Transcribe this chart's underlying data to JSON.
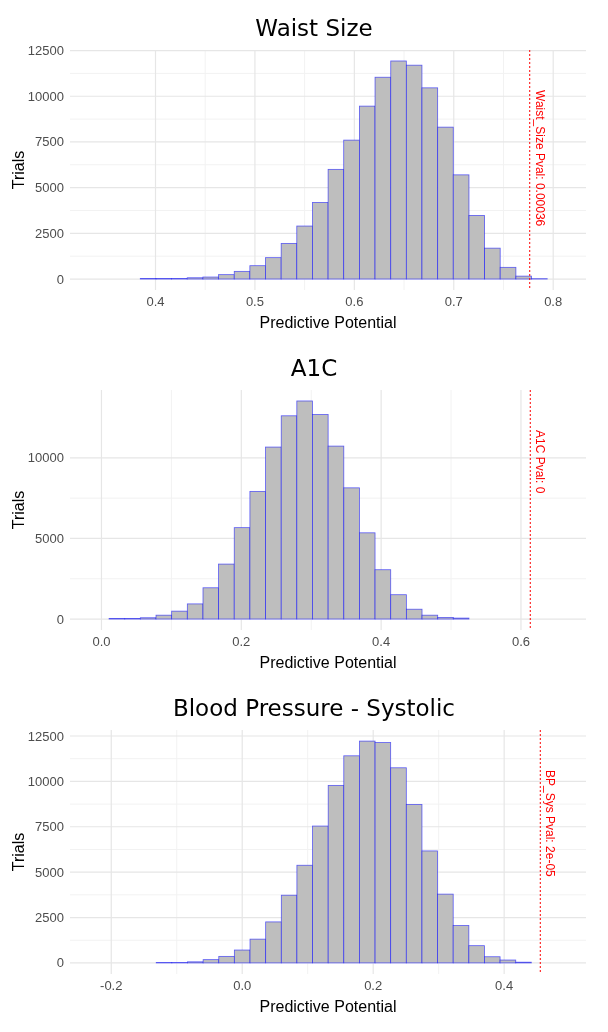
{
  "chart_data": [
    {
      "type": "histogram",
      "title": "Waist Size",
      "xlabel": "Predictive Potential",
      "ylabel": "Trials",
      "color": "#bebebe",
      "annotations": [
        "Waist_Size Pval: 0.00036"
      ],
      "bins": [
        0.3375,
        0.3532,
        0.369,
        0.3847,
        0.4005,
        0.4162,
        0.4319,
        0.4477,
        0.4634,
        0.4792,
        0.4949,
        0.5106,
        0.5264,
        0.5421,
        0.5579,
        0.5736,
        0.5893,
        0.6051,
        0.6208,
        0.6366,
        0.6523,
        0.668,
        0.6838,
        0.6995,
        0.7153,
        0.731,
        0.7467,
        0.7625,
        0.7782,
        0.794,
        0.8097
      ],
      "values": [
        0,
        0,
        0,
        30,
        30,
        30,
        70,
        110,
        240,
        420,
        730,
        1170,
        1950,
        2900,
        4190,
        6000,
        7600,
        9460,
        11040,
        11930,
        11700,
        10460,
        8310,
        5700,
        3480,
        1690,
        640,
        160,
        20,
        0
      ],
      "xlim": [
        0.314,
        0.833
      ],
      "xticks": [
        0.4,
        0.5,
        0.6,
        0.7,
        0.8
      ],
      "ylim": [
        -600,
        12530
      ],
      "yticks": [
        0,
        2500,
        5000,
        7500,
        10000,
        12500
      ],
      "grid": true,
      "ref_lines": [
        {
          "axis": "x",
          "value": 0.7764,
          "color": "#ff0000",
          "line_style": "dotted"
        }
      ]
    },
    {
      "type": "histogram",
      "title": "A1C",
      "xlabel": "Predictive Potential",
      "ylabel": "Trials",
      "color": "#bebebe",
      "annotations": [
        "A1C Pval: 0"
      ],
      "bins": [
        -0.0115,
        0.0109,
        0.0333,
        0.0556,
        0.078,
        0.1004,
        0.1228,
        0.1452,
        0.1675,
        0.1899,
        0.2123,
        0.2347,
        0.2571,
        0.2794,
        0.3018,
        0.3242,
        0.3466,
        0.369,
        0.3913,
        0.4137,
        0.4361,
        0.4585,
        0.4809,
        0.5032,
        0.5256,
        0.548,
        0.5704,
        0.5928,
        0.6151,
        0.6375,
        0.6599
      ],
      "values": [
        0,
        40,
        40,
        80,
        240,
        490,
        940,
        1940,
        3410,
        5670,
        7920,
        10670,
        12610,
        13530,
        12690,
        10730,
        8140,
        5350,
        3060,
        1510,
        610,
        240,
        100,
        60,
        0,
        0,
        0,
        0,
        0,
        0
      ],
      "xlim": [
        -0.045,
        0.693
      ],
      "xticks": [
        {
          "value": 0,
          "label": "0.0"
        },
        {
          "value": 0.2,
          "label": "0.2"
        },
        {
          "value": 0.4,
          "label": "0.4"
        },
        {
          "value": 0.6,
          "label": "0.6"
        }
      ],
      "ylim": [
        -680,
        14210
      ],
      "yticks": [
        0,
        5000,
        10000
      ],
      "grid": true,
      "ref_lines": [
        {
          "axis": "x",
          "value": 0.6133,
          "color": "#ff0000",
          "line_style": "dotted"
        }
      ]
    },
    {
      "type": "histogram",
      "title": "Blood Pressure - Systolic",
      "xlabel": "Predictive Potential",
      "ylabel": "Trials",
      "color": "#bebebe",
      "annotations": [
        "BP_Sys Pval: 2e-05"
      ],
      "bins": [
        -0.2268,
        -0.2029,
        -0.1791,
        -0.1552,
        -0.1313,
        -0.1075,
        -0.0836,
        -0.0597,
        -0.0358,
        -0.012,
        0.0119,
        0.0358,
        0.0597,
        0.0835,
        0.1074,
        0.1313,
        0.1551,
        0.179,
        0.2029,
        0.2267,
        0.2506,
        0.2745,
        0.2983,
        0.3222,
        0.3461,
        0.3699,
        0.3938,
        0.4177,
        0.4415,
        0.4654,
        0.4893
      ],
      "values": [
        0,
        0,
        0,
        0,
        20,
        20,
        60,
        180,
        360,
        710,
        1310,
        2260,
        3730,
        5380,
        7540,
        9780,
        11410,
        12220,
        12140,
        10750,
        8730,
        6170,
        3790,
        2060,
        950,
        340,
        160,
        40,
        0,
        0
      ],
      "xlim": [
        -0.263,
        0.525
      ],
      "xticks": [
        -0.2,
        {
          "value": 0,
          "label": "0.0"
        },
        0.2,
        0.4
      ],
      "ylim": [
        -611,
        12831
      ],
      "yticks": [
        0,
        2500,
        5000,
        7500,
        10000,
        12500
      ],
      "grid": true,
      "ref_lines": [
        {
          "axis": "x",
          "value": 0.4552,
          "color": "#ff0000",
          "line_style": "dotted"
        }
      ]
    }
  ]
}
